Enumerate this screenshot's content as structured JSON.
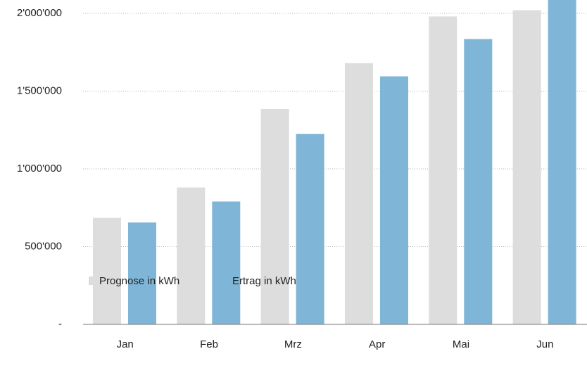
{
  "chart_data": {
    "type": "bar",
    "categories": [
      "Jan",
      "Feb",
      "Mrz",
      "Apr",
      "Mai",
      "Jun"
    ],
    "series": [
      {
        "name": "Prognose in kWh",
        "color": "#dcdddc",
        "values": [
          685000,
          880000,
          1385000,
          1680000,
          1980000,
          2020000
        ]
      },
      {
        "name": "Ertrag in kWh",
        "color": "#7fb5d6",
        "values": [
          655000,
          790000,
          1225000,
          1595000,
          1835000,
          2100000
        ]
      }
    ],
    "ylim": [
      0,
      2086000
    ],
    "yticks": [
      {
        "value": 0,
        "label": "-"
      },
      {
        "value": 500000,
        "label": "500'000"
      },
      {
        "value": 1000000,
        "label": "1'000'000"
      },
      {
        "value": 1500000,
        "label": "1'500'000"
      },
      {
        "value": 2000000,
        "label": "2'000'000"
      }
    ],
    "grid": true,
    "legend": "bottom"
  }
}
